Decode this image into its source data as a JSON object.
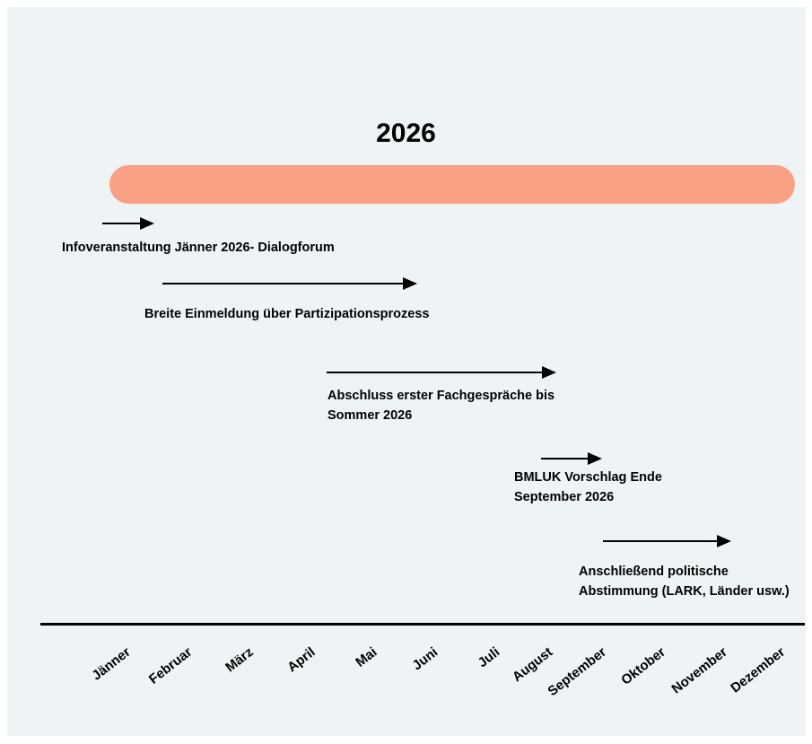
{
  "title": "2026",
  "colors": {
    "bar": "#f9a085",
    "panel": "#eef3f6"
  },
  "events": [
    {
      "lines": [
        "Infoveranstaltung Jänner 2026- Dialogforum"
      ]
    },
    {
      "lines": [
        "Breite Einmeldung über Partizipationsprozess"
      ]
    },
    {
      "lines": [
        "Abschluss erster Fachgespräche bis",
        "Sommer 2026"
      ]
    },
    {
      "lines": [
        "BMLUK Vorschlag Ende",
        "September 2026"
      ]
    },
    {
      "lines": [
        "Anschließend politische",
        "Abstimmung (LARK, Länder usw.)"
      ]
    }
  ],
  "months": [
    "Jänner",
    "Februar",
    "März",
    "April",
    "Mai",
    "Juni",
    "Juli",
    "August",
    "September",
    "Oktober",
    "November",
    "Dezember"
  ]
}
